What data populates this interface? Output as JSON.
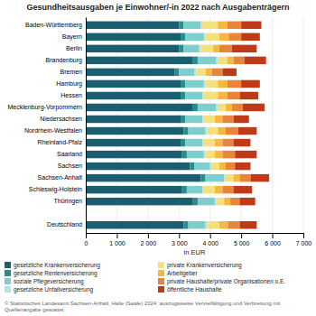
{
  "chart_data": {
    "type": "bar",
    "orientation": "horizontal",
    "stacked": true,
    "title": "Gesundheitsausgaben je Einwohner/-in 2022 nach Ausgabenträgern",
    "xlabel": "in EUR",
    "categories": [
      "Baden-Württemberg",
      "Bayern",
      "Berlin",
      "Brandenburg",
      "Bremen",
      "Hamburg",
      "Hessen",
      "Mecklenburg-Vorpommern",
      "Niedersachsen",
      "Nordrhein-Westfalen",
      "Rheinland-Pfalz",
      "Saarland",
      "Sachsen",
      "Sachsen-Anhalt",
      "Schleswig-Holstein",
      "Thüringen",
      null,
      "Deutschland"
    ],
    "series": [
      {
        "name": "gesetzliche Krankenversicherung",
        "color": "#1b5e70",
        "values": [
          3000,
          3050,
          3000,
          3450,
          2850,
          3050,
          3050,
          3450,
          3050,
          3150,
          3050,
          3100,
          3350,
          3700,
          3100,
          3450,
          0,
          3150
        ]
      },
      {
        "name": "gesetzliche Rentenversicherung",
        "color": "#2b8c8c",
        "values": [
          150,
          150,
          150,
          150,
          150,
          150,
          150,
          150,
          150,
          150,
          150,
          150,
          150,
          150,
          150,
          150,
          0,
          150
        ]
      },
      {
        "name": "soziale Pflegeversicherung",
        "color": "#7ecece",
        "values": [
          550,
          600,
          500,
          600,
          500,
          600,
          550,
          600,
          550,
          550,
          550,
          550,
          500,
          600,
          500,
          550,
          0,
          550
        ]
      },
      {
        "name": "gesetzliche Unfallversicherung",
        "color": "#b8e2e2",
        "values": [
          50,
          50,
          50,
          50,
          50,
          50,
          50,
          50,
          50,
          50,
          50,
          50,
          50,
          50,
          50,
          50,
          0,
          50
        ]
      },
      {
        "name": "private Krankenversicherung",
        "color": "#f5e080",
        "values": [
          500,
          450,
          400,
          300,
          300,
          400,
          450,
          250,
          350,
          350,
          350,
          300,
          250,
          250,
          350,
          250,
          0,
          400
        ]
      },
      {
        "name": "Arbeitgeber",
        "color": "#f5b840",
        "values": [
          300,
          300,
          200,
          200,
          200,
          300,
          300,
          200,
          250,
          250,
          250,
          250,
          200,
          200,
          250,
          200,
          0,
          270
        ]
      },
      {
        "name": "private Haushalte/private Organisationen o.E.",
        "color": "#e8853a",
        "values": [
          450,
          400,
          400,
          350,
          350,
          450,
          400,
          350,
          350,
          400,
          350,
          400,
          300,
          350,
          350,
          300,
          0,
          380
        ]
      },
      {
        "name": "öffentliche Haushalte",
        "color": "#bf3a18",
        "values": [
          650,
          600,
          800,
          700,
          450,
          600,
          600,
          700,
          500,
          600,
          550,
          700,
          500,
          600,
          600,
          500,
          0,
          550
        ]
      }
    ],
    "xlim": [
      0,
      7000
    ],
    "xticks": [
      0,
      {
        "value": 1000,
        "label": "1 000"
      },
      {
        "value": 2000,
        "label": "2 000"
      },
      {
        "value": 3000,
        "label": "3 000"
      },
      {
        "value": 4000,
        "label": "4 000"
      },
      {
        "value": 5000,
        "label": "5 000"
      },
      {
        "value": 6000,
        "label": "6 000"
      },
      {
        "value": 7000,
        "label": "7 000"
      }
    ],
    "grid": true,
    "legend": "bottom",
    "annotations": [
      "© Statistisches Landesamt Sachsen-Anhalt, Halle (Saale) 2024; auszugsweise Vervielfältigung und Verbreitung mit Quellenangabe gestattet"
    ]
  }
}
